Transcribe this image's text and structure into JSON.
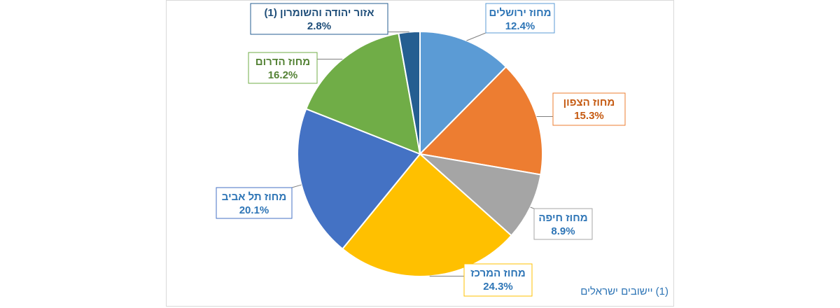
{
  "chart_data": {
    "type": "pie",
    "title": "",
    "slices": [
      {
        "label": "מחוז ירושלים",
        "value": 12.4,
        "display": "12.4%",
        "color": "#5b9bd5",
        "label_color": "#2e75b6"
      },
      {
        "label": "מחוז הצפון",
        "value": 15.3,
        "display": "15.3%",
        "color": "#ed7d31",
        "label_color": "#c55a11"
      },
      {
        "label": "מחוז חיפה",
        "value": 8.9,
        "display": "8.9%",
        "color": "#a5a5a5",
        "label_color": "#2e75b6"
      },
      {
        "label": "מחוז המרכז",
        "value": 24.3,
        "display": "24.3%",
        "color": "#ffc000",
        "label_color": "#2e75b6"
      },
      {
        "label": "מחוז תל אביב",
        "value": 20.1,
        "display": "20.1%",
        "color": "#4472c4",
        "label_color": "#2e75b6"
      },
      {
        "label": "מחוז הדרום",
        "value": 16.2,
        "display": "16.2%",
        "color": "#70ad47",
        "label_color": "#548235"
      },
      {
        "label": "אזור יהודה והשומרון (1)",
        "value": 2.8,
        "display": "2.8%",
        "color": "#255e91",
        "label_color": "#1f4e79"
      }
    ],
    "legend": "none"
  },
  "footnote": "(1) יישובים ישראלים"
}
